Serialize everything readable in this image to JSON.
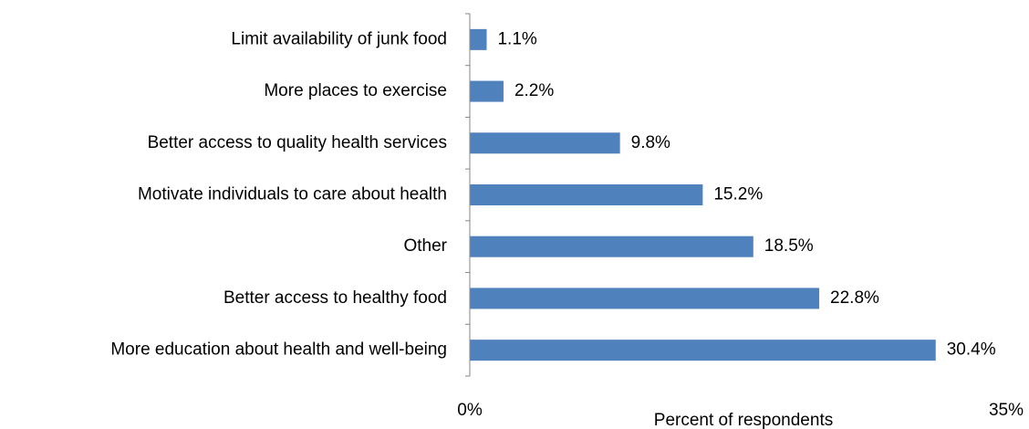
{
  "chart_data": {
    "type": "bar",
    "orientation": "horizontal",
    "categories": [
      "Limit availability of junk food",
      "More places to exercise",
      "Better access to quality health services",
      "Motivate individuals to care about health",
      "Other",
      "Better access to healthy food",
      "More education about health and well-being"
    ],
    "values": [
      1.1,
      2.2,
      9.8,
      15.2,
      18.5,
      22.8,
      30.4
    ],
    "value_labels": [
      "1.1%",
      "2.2%",
      "9.8%",
      "15.2%",
      "18.5%",
      "22.8%",
      "30.4%"
    ],
    "xlim": [
      0,
      35
    ],
    "x_ticks": [
      "0%",
      "35%"
    ],
    "xlabel": "Percent of respondents",
    "ylabel": "",
    "title": "",
    "grid": false,
    "legend": "none",
    "bar_color": "#4f81bd",
    "axis_color": "#868686"
  }
}
